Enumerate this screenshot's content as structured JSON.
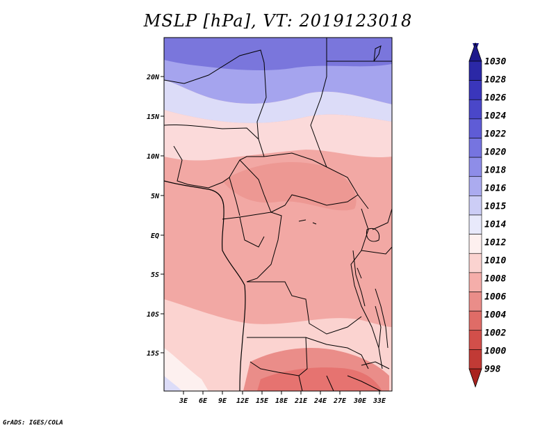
{
  "title": "MSLP [hPa], VT: 2019123018",
  "footer": "GrADS: IGES/COLA",
  "axes": {
    "lat_labels": [
      "20N",
      "15N",
      "10N",
      "5N",
      "EQ",
      "5S",
      "10S",
      "15S"
    ],
    "lon_labels": [
      "3E",
      "6E",
      "9E",
      "12E",
      "15E",
      "18E",
      "21E",
      "24E",
      "27E",
      "30E",
      "33E"
    ]
  },
  "colorbar": {
    "levels": [
      "1030",
      "1028",
      "1026",
      "1024",
      "1022",
      "1020",
      "1018",
      "1016",
      "1015",
      "1014",
      "1012",
      "1010",
      "1008",
      "1006",
      "1004",
      "1002",
      "1000",
      "998"
    ],
    "colors": [
      "#1e1a8c",
      "#2b28a6",
      "#3a36bb",
      "#4a47c9",
      "#5f5cd6",
      "#7674e0",
      "#8e8de8",
      "#ababef",
      "#cccdf6",
      "#e8e9fb",
      "#fdf0ef",
      "#fbd3d0",
      "#f5aeaa",
      "#ea8d89",
      "#df6c67",
      "#d24f4a",
      "#c13a35",
      "#a9231f"
    ]
  },
  "regions": [
    {
      "name": "high-pressure-north",
      "color": "#7a76dc"
    },
    {
      "name": "mid-high-band",
      "color": "#a5a4ee"
    },
    {
      "name": "light-band",
      "color": "#dcdcf8"
    },
    {
      "name": "sahel-band",
      "color": "#fbdada"
    },
    {
      "name": "central-band",
      "color": "#f2a8a4"
    },
    {
      "name": "low-pressure-south",
      "color": "#e67370"
    }
  ]
}
